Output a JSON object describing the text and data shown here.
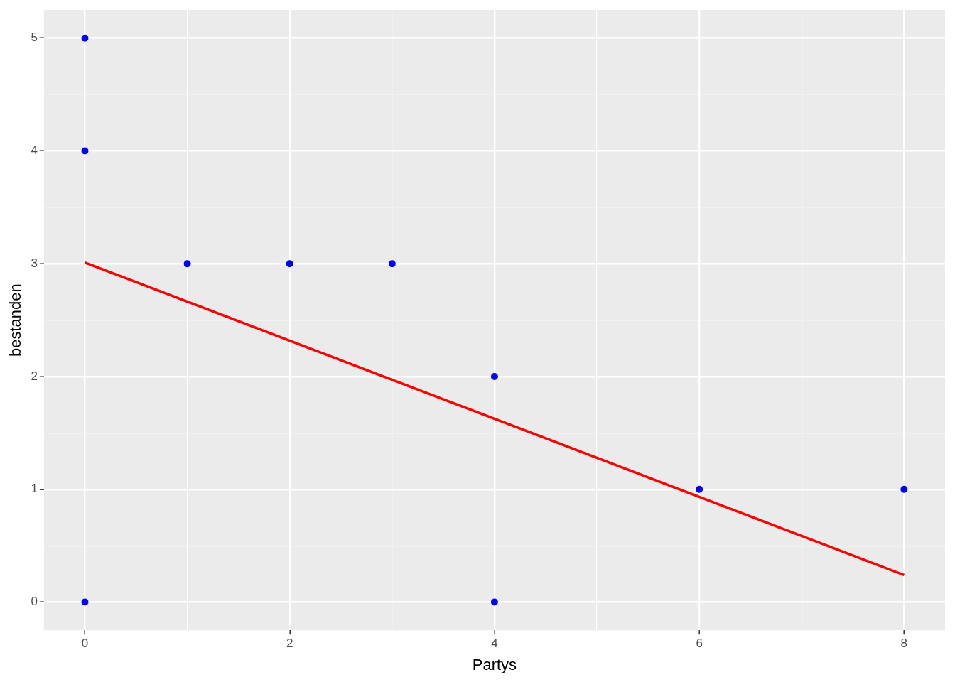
{
  "chart_data": {
    "type": "scatter",
    "xlabel": "Partys",
    "ylabel": "bestanden",
    "xlim": [
      -0.4,
      8.4
    ],
    "ylim": [
      -0.25,
      5.25
    ],
    "xticks": [
      0,
      {
        "value": 1,
        "label": null
      },
      2,
      {
        "value": 3,
        "label": null
      },
      4,
      {
        "value": 5,
        "label": null
      },
      6,
      {
        "value": 7,
        "label": null
      },
      8
    ],
    "yticks": [
      0,
      {
        "value": 0.5,
        "label": null
      },
      1,
      {
        "value": 1.5,
        "label": null
      },
      2,
      {
        "value": 2.5,
        "label": null
      },
      3,
      {
        "value": 3.5,
        "label": null
      },
      4,
      {
        "value": 4.5,
        "label": null
      },
      5
    ],
    "grid": true,
    "legend": false,
    "marker": "circle",
    "series": [
      {
        "type": "scatter",
        "color": "#0000ff",
        "x": [
          0,
          0,
          0,
          1,
          2,
          3,
          4,
          4,
          6,
          8
        ],
        "values": [
          5,
          4,
          0,
          3,
          3,
          3,
          2,
          0,
          1,
          1
        ]
      },
      {
        "type": "line",
        "color": "#ff0000",
        "x": [
          0,
          8
        ],
        "values": [
          3.01,
          0.24
        ],
        "marker": "none",
        "line_style": "solid"
      }
    ]
  }
}
